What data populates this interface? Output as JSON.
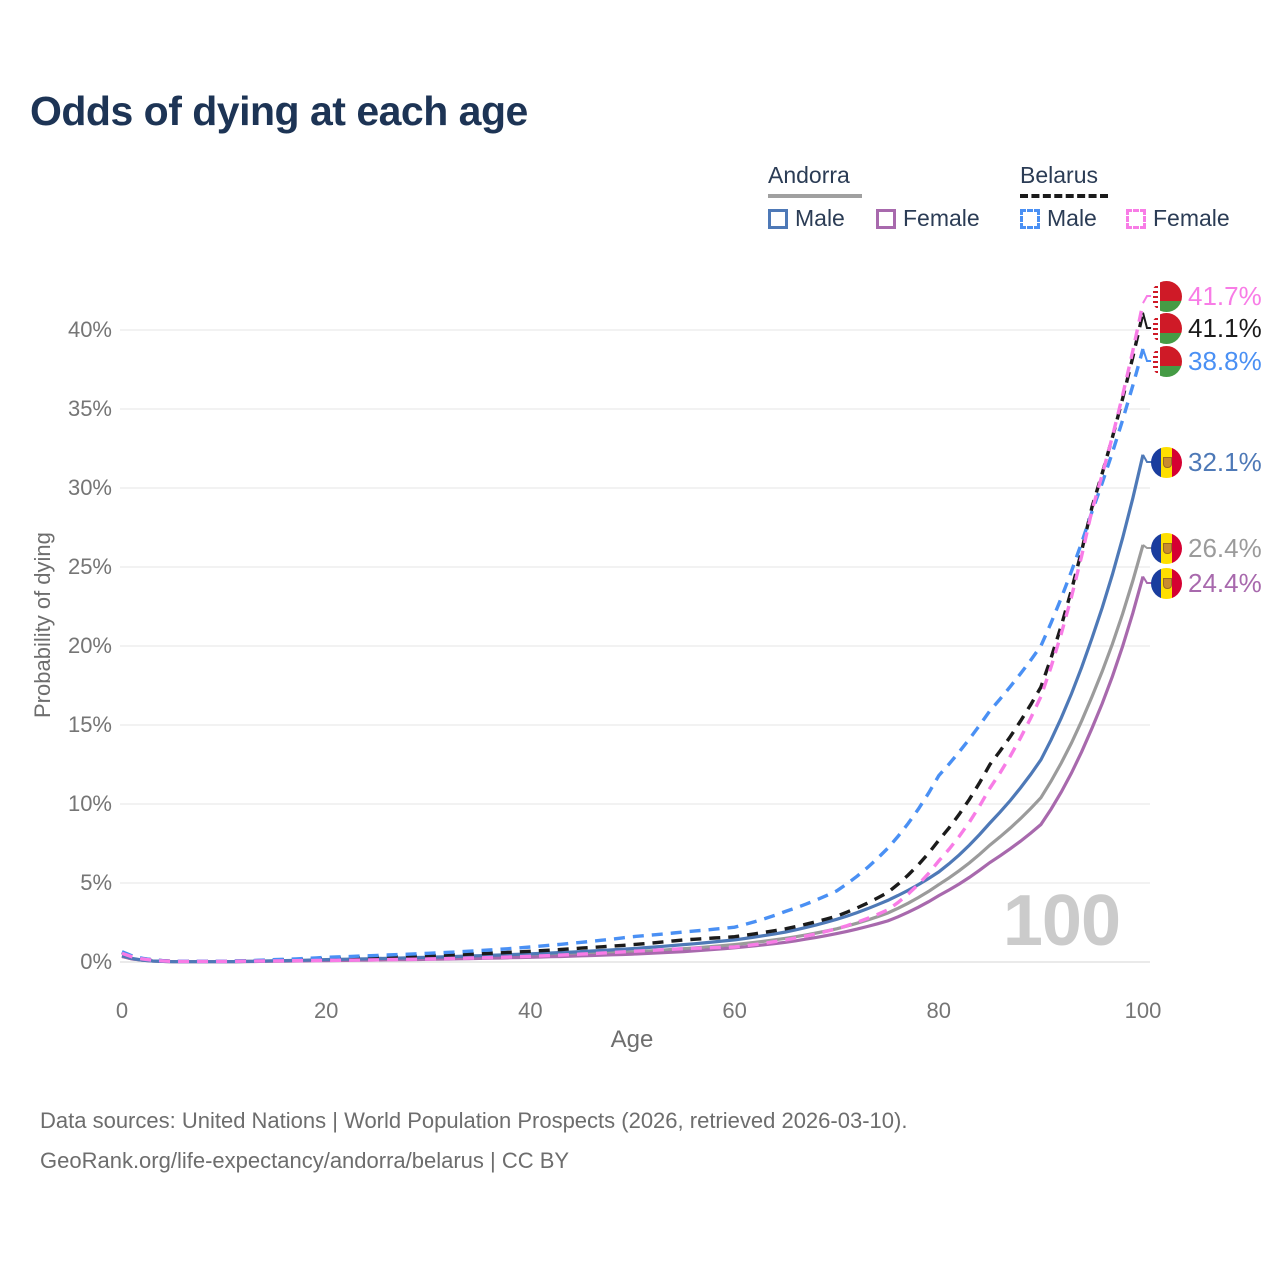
{
  "title": "Odds of dying at each age",
  "legend": {
    "groups": [
      {
        "name": "Andorra",
        "line_style": "solid",
        "line_color": "#a0a0a0",
        "items": [
          {
            "label": "Male",
            "color": "#4e79b7",
            "dashed": false
          },
          {
            "label": "Female",
            "color": "#a869ad",
            "dashed": false
          }
        ]
      },
      {
        "name": "Belarus",
        "line_style": "dashed",
        "line_color": "#1b1b1b",
        "items": [
          {
            "label": "Male",
            "color": "#4a90f4",
            "dashed": true
          },
          {
            "label": "Female",
            "color": "#f87ce6",
            "dashed": true
          }
        ]
      }
    ]
  },
  "axes": {
    "x": {
      "label": "Age",
      "ticks": [
        0,
        20,
        40,
        60,
        80,
        100
      ]
    },
    "y": {
      "label": "Probability of dying",
      "ticks": [
        "0%",
        "5%",
        "10%",
        "15%",
        "20%",
        "25%",
        "30%",
        "35%",
        "40%"
      ]
    }
  },
  "watermark": "100",
  "footer": {
    "line1": "Data sources: United Nations | World Population Prospects (2026, retrieved 2026-03-10).",
    "line2": "GeoRank.org/life-expectancy/andorra/belarus | CC BY"
  },
  "chart_data": {
    "type": "line",
    "title": "Odds of dying at each age",
    "xlabel": "Age",
    "ylabel": "Probability of dying",
    "xlim": [
      0,
      100
    ],
    "ylim_percent": [
      0,
      43
    ],
    "grid": "horizontal",
    "legend_position": "top-right",
    "x_ages": [
      0,
      5,
      10,
      15,
      20,
      25,
      30,
      35,
      40,
      45,
      50,
      55,
      60,
      65,
      70,
      75,
      80,
      85,
      90,
      95,
      100
    ],
    "series": [
      {
        "name": "Andorra Both sexes",
        "country": "Andorra",
        "sex": "Both sexes",
        "color": "#9b9b9b",
        "dashed": false,
        "flag": "andorra",
        "end_label": "26.4%",
        "values_pct": [
          0.35,
          0.02,
          0.02,
          0.06,
          0.12,
          0.17,
          0.23,
          0.3,
          0.39,
          0.5,
          0.64,
          0.84,
          1.1,
          1.5,
          2.1,
          3.1,
          4.9,
          7.4,
          10.4,
          16.8,
          26.4
        ]
      },
      {
        "name": "Andorra Female",
        "country": "Andorra",
        "sex": "Female",
        "color": "#a869ad",
        "dashed": false,
        "flag": "andorra",
        "end_label": "24.4%",
        "values_pct": [
          0.35,
          0.02,
          0.02,
          0.05,
          0.09,
          0.13,
          0.17,
          0.23,
          0.3,
          0.39,
          0.5,
          0.66,
          0.9,
          1.25,
          1.8,
          2.6,
          4.2,
          6.3,
          8.7,
          14.8,
          24.4
        ]
      },
      {
        "name": "Andorra Male",
        "country": "Andorra",
        "sex": "Male",
        "color": "#4e79b7",
        "dashed": false,
        "flag": "andorra",
        "end_label": "32.1%",
        "values_pct": [
          0.4,
          0.02,
          0.02,
          0.08,
          0.15,
          0.22,
          0.3,
          0.4,
          0.52,
          0.66,
          0.85,
          1.1,
          1.4,
          1.9,
          2.7,
          3.9,
          5.7,
          8.8,
          12.8,
          20.5,
          32.1
        ]
      },
      {
        "name": "Belarus Both sexes",
        "country": "Belarus",
        "sex": "Both sexes",
        "color": "#1b1b1b",
        "dashed": true,
        "flag": "belarus",
        "end_label": "41.1%",
        "values_pct": [
          0.6,
          0.05,
          0.05,
          0.12,
          0.22,
          0.3,
          0.4,
          0.52,
          0.68,
          0.88,
          1.1,
          1.4,
          1.6,
          2.1,
          2.9,
          4.4,
          7.7,
          12.5,
          17.4,
          28.8,
          41.1
        ]
      },
      {
        "name": "Belarus Male",
        "country": "Belarus",
        "sex": "Male",
        "color": "#4a90f4",
        "dashed": true,
        "flag": "belarus",
        "end_label": "38.8%",
        "values_pct": [
          0.65,
          0.05,
          0.05,
          0.15,
          0.3,
          0.42,
          0.55,
          0.72,
          0.95,
          1.25,
          1.6,
          1.9,
          2.2,
          3.2,
          4.5,
          7.2,
          11.8,
          15.9,
          20.0,
          28.5,
          38.8
        ]
      },
      {
        "name": "Belarus Female",
        "country": "Belarus",
        "sex": "Female",
        "color": "#f87ce6",
        "dashed": true,
        "flag": "belarus",
        "end_label": "41.7%",
        "values_pct": [
          0.55,
          0.04,
          0.04,
          0.07,
          0.1,
          0.14,
          0.19,
          0.26,
          0.36,
          0.5,
          0.68,
          0.85,
          0.95,
          1.4,
          2.1,
          3.3,
          6.4,
          11.0,
          16.8,
          28.6,
          41.7
        ]
      }
    ]
  }
}
